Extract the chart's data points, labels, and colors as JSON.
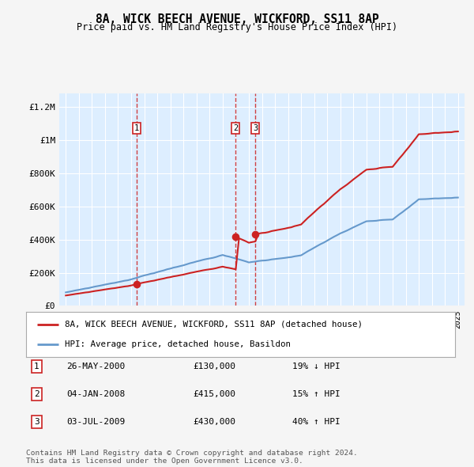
{
  "title": "8A, WICK BEECH AVENUE, WICKFORD, SS11 8AP",
  "subtitle": "Price paid vs. HM Land Registry's House Price Index (HPI)",
  "legend_line1": "8A, WICK BEECH AVENUE, WICKFORD, SS11 8AP (detached house)",
  "legend_line2": "HPI: Average price, detached house, Basildon",
  "footnote1": "Contains HM Land Registry data © Crown copyright and database right 2024.",
  "footnote2": "This data is licensed under the Open Government Licence v3.0.",
  "transactions": [
    {
      "num": 1,
      "date": "26-MAY-2000",
      "price": "£130,000",
      "change": "19% ↓ HPI",
      "year": 2000.4
    },
    {
      "num": 2,
      "date": "04-JAN-2008",
      "price": "£415,000",
      "change": "15% ↑ HPI",
      "year": 2008.0
    },
    {
      "num": 3,
      "date": "03-JUL-2009",
      "price": "£430,000",
      "change": "40% ↑ HPI",
      "year": 2009.5
    }
  ],
  "transaction_prices": [
    130000,
    415000,
    430000
  ],
  "hpi_color": "#6699cc",
  "price_color": "#cc2222",
  "dashed_color": "#cc2222",
  "background_plot": "#ddeeff",
  "background_fig": "#f5f5f5",
  "ylim": [
    0,
    1280000
  ],
  "xlim_start": 1994.5,
  "xlim_end": 2025.5,
  "yticks": [
    0,
    200000,
    400000,
    600000,
    800000,
    1000000,
    1200000
  ],
  "ytick_labels": [
    "£0",
    "£200K",
    "£400K",
    "£600K",
    "£800K",
    "£1M",
    "£1.2M"
  ]
}
